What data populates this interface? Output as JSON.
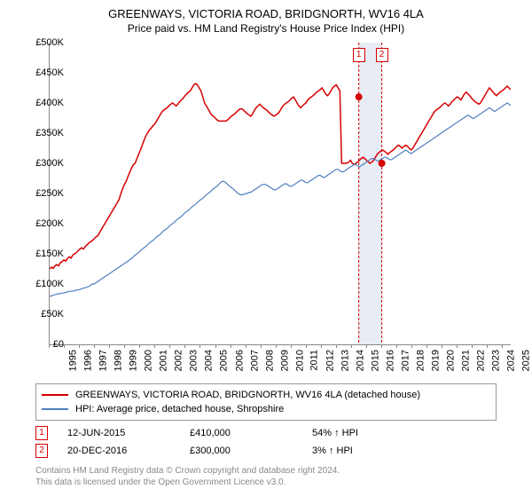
{
  "title": "GREENWAYS, VICTORIA ROAD, BRIDGNORTH, WV16 4LA",
  "subtitle": "Price paid vs. HM Land Registry's House Price Index (HPI)",
  "chart": {
    "type": "line",
    "x_start_year": 1995,
    "x_end_year": 2025,
    "xlim": [
      1995,
      2025.5
    ],
    "ylim": [
      0,
      500000
    ],
    "ytick_step": 50000,
    "y_prefix": "£",
    "background_color": "#ffffff",
    "axis_color": "#888888",
    "series": [
      {
        "label": "GREENWAYS, VICTORIA ROAD, BRIDGNORTH, WV16 4LA (detached house)",
        "color": "#d60000",
        "line_width": 1.5,
        "values": [
          125,
          128,
          126,
          130,
          132,
          130,
          135,
          137,
          140,
          138,
          142,
          145,
          143,
          148,
          150,
          152,
          155,
          158,
          160,
          158,
          162,
          165,
          168,
          170,
          172,
          175,
          178,
          180,
          185,
          190,
          195,
          200,
          205,
          210,
          215,
          220,
          225,
          230,
          235,
          240,
          250,
          258,
          265,
          270,
          278,
          285,
          292,
          298,
          300,
          308,
          315,
          322,
          330,
          338,
          345,
          350,
          355,
          358,
          362,
          365,
          370,
          375,
          380,
          385,
          388,
          390,
          392,
          395,
          398,
          400,
          398,
          395,
          398,
          402,
          405,
          408,
          412,
          415,
          418,
          420,
          425,
          430,
          432,
          430,
          425,
          420,
          410,
          400,
          395,
          390,
          385,
          380,
          378,
          375,
          372,
          370,
          370,
          370,
          370,
          370,
          372,
          375,
          378,
          380,
          382,
          385,
          388,
          390,
          390,
          388,
          385,
          382,
          380,
          378,
          382,
          388,
          392,
          395,
          398,
          395,
          392,
          390,
          388,
          385,
          382,
          380,
          378,
          380,
          382,
          385,
          390,
          395,
          398,
          400,
          402,
          405,
          408,
          410,
          405,
          400,
          395,
          392,
          395,
          398,
          400,
          405,
          408,
          410,
          412,
          415,
          418,
          420,
          422,
          425,
          420,
          415,
          412,
          415,
          420,
          425,
          428,
          430,
          425,
          420,
          300,
          300,
          300,
          300,
          302,
          305,
          300,
          298,
          300,
          302,
          305,
          308,
          310,
          308,
          305,
          302,
          300,
          302,
          305,
          310,
          315,
          318,
          320,
          322,
          320,
          318,
          315,
          318,
          320,
          322,
          325,
          328,
          330,
          328,
          325,
          328,
          330,
          328,
          325,
          322,
          325,
          330,
          335,
          340,
          345,
          350,
          355,
          360,
          365,
          370,
          375,
          380,
          385,
          388,
          390,
          392,
          395,
          398,
          400,
          398,
          395,
          398,
          402,
          405,
          408,
          410,
          408,
          405,
          410,
          415,
          418,
          415,
          412,
          408,
          405,
          402,
          400,
          398,
          400,
          405,
          410,
          415,
          420,
          425,
          422,
          418,
          415,
          412,
          415,
          418,
          420,
          422,
          425,
          428,
          425,
          422
        ]
      },
      {
        "label": "HPI: Average price, detached house, Shropshire",
        "color": "#5080c0",
        "line_width": 1.2,
        "values": [
          80,
          80,
          82,
          82,
          83,
          84,
          84,
          85,
          85,
          86,
          87,
          88,
          88,
          88,
          89,
          90,
          90,
          91,
          92,
          93,
          94,
          95,
          96,
          98,
          100,
          100,
          102,
          104,
          106,
          108,
          110,
          112,
          114,
          116,
          118,
          120,
          122,
          124,
          126,
          128,
          130,
          132,
          134,
          136,
          138,
          140,
          142,
          145,
          148,
          150,
          152,
          155,
          158,
          160,
          162,
          165,
          168,
          170,
          172,
          175,
          178,
          180,
          182,
          185,
          188,
          190,
          192,
          195,
          198,
          200,
          202,
          205,
          208,
          210,
          212,
          215,
          218,
          220,
          222,
          225,
          228,
          230,
          232,
          235,
          238,
          240,
          242,
          245,
          248,
          250,
          252,
          255,
          258,
          260,
          262,
          265,
          268,
          270,
          270,
          268,
          265,
          262,
          260,
          258,
          255,
          252,
          250,
          248,
          248,
          248,
          250,
          250,
          252,
          252,
          254,
          256,
          258,
          260,
          262,
          264,
          265,
          265,
          264,
          262,
          260,
          258,
          256,
          256,
          258,
          260,
          262,
          264,
          266,
          266,
          264,
          262,
          262,
          264,
          266,
          268,
          270,
          272,
          272,
          270,
          268,
          268,
          270,
          272,
          274,
          276,
          278,
          280,
          280,
          278,
          276,
          278,
          280,
          282,
          284,
          286,
          288,
          290,
          290,
          288,
          286,
          286,
          288,
          290,
          292,
          294,
          296,
          298,
          298,
          296,
          294,
          296,
          298,
          300,
          302,
          304,
          306,
          308,
          308,
          306,
          304,
          304,
          306,
          308,
          310,
          310,
          308,
          306,
          306,
          308,
          310,
          312,
          314,
          316,
          318,
          320,
          322,
          320,
          318,
          316,
          318,
          320,
          322,
          324,
          326,
          328,
          330,
          332,
          334,
          336,
          338,
          340,
          342,
          344,
          346,
          348,
          350,
          352,
          354,
          356,
          358,
          360,
          362,
          364,
          366,
          368,
          370,
          372,
          374,
          376,
          378,
          380,
          378,
          376,
          374,
          376,
          378,
          380,
          382,
          384,
          386,
          388,
          390,
          392,
          390,
          388,
          386,
          388,
          390,
          392,
          394,
          396,
          398,
          400,
          398,
          396
        ]
      }
    ],
    "sales": [
      {
        "index": 1,
        "date": "12-JUN-2015",
        "price": "£410,000",
        "vs_hpi": "54% ↑ HPI",
        "x_year": 2015.45,
        "y_value": 410000,
        "marker_color": "#d60000"
      },
      {
        "index": 2,
        "date": "20-DEC-2016",
        "price": "£300,000",
        "vs_hpi": "3% ↑ HPI",
        "x_year": 2016.97,
        "y_value": 300000,
        "marker_color": "#d60000"
      }
    ]
  },
  "legend": {
    "border_color": "#999999"
  },
  "footer": {
    "line1": "Contains HM Land Registry data © Crown copyright and database right 2024.",
    "line2": "This data is licensed under the Open Government Licence v3.0."
  }
}
